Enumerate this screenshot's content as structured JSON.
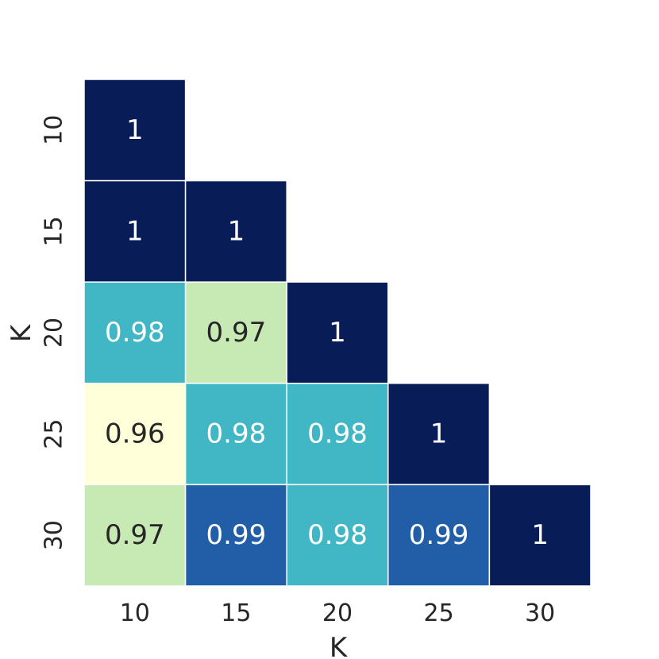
{
  "chart_data": {
    "type": "heatmap",
    "title": "",
    "xlabel": "K",
    "ylabel": "K",
    "x_categories": [
      "10",
      "15",
      "20",
      "25",
      "30"
    ],
    "y_categories": [
      "10",
      "15",
      "20",
      "25",
      "30"
    ],
    "mask": "upper-triangle",
    "colormap": "YlGnBu",
    "color_range": [
      0.96,
      1.0
    ],
    "grid": false,
    "legend": "none",
    "cells": [
      {
        "row": "10",
        "col": "10",
        "value": 1,
        "label": "1",
        "color": "#081d58",
        "text_color": "#ffffff"
      },
      {
        "row": "15",
        "col": "10",
        "value": 1,
        "label": "1",
        "color": "#081d58",
        "text_color": "#ffffff"
      },
      {
        "row": "15",
        "col": "15",
        "value": 1,
        "label": "1",
        "color": "#081d58",
        "text_color": "#ffffff"
      },
      {
        "row": "20",
        "col": "10",
        "value": 0.98,
        "label": "0.98",
        "color": "#41b6c4",
        "text_color": "#ffffff"
      },
      {
        "row": "20",
        "col": "15",
        "value": 0.97,
        "label": "0.97",
        "color": "#c7e9b4",
        "text_color": "#262626"
      },
      {
        "row": "20",
        "col": "20",
        "value": 1,
        "label": "1",
        "color": "#081d58",
        "text_color": "#ffffff"
      },
      {
        "row": "25",
        "col": "10",
        "value": 0.96,
        "label": "0.96",
        "color": "#ffffd9",
        "text_color": "#262626"
      },
      {
        "row": "25",
        "col": "15",
        "value": 0.98,
        "label": "0.98",
        "color": "#41b6c4",
        "text_color": "#ffffff"
      },
      {
        "row": "25",
        "col": "20",
        "value": 0.98,
        "label": "0.98",
        "color": "#41b6c4",
        "text_color": "#ffffff"
      },
      {
        "row": "25",
        "col": "25",
        "value": 1,
        "label": "1",
        "color": "#081d58",
        "text_color": "#ffffff"
      },
      {
        "row": "30",
        "col": "10",
        "value": 0.97,
        "label": "0.97",
        "color": "#c7e9b4",
        "text_color": "#262626"
      },
      {
        "row": "30",
        "col": "15",
        "value": 0.99,
        "label": "0.99",
        "color": "#225ea8",
        "text_color": "#ffffff"
      },
      {
        "row": "30",
        "col": "20",
        "value": 0.98,
        "label": "0.98",
        "color": "#41b6c4",
        "text_color": "#ffffff"
      },
      {
        "row": "30",
        "col": "25",
        "value": 0.99,
        "label": "0.99",
        "color": "#225ea8",
        "text_color": "#ffffff"
      },
      {
        "row": "30",
        "col": "30",
        "value": 1,
        "label": "1",
        "color": "#081d58",
        "text_color": "#ffffff"
      }
    ]
  }
}
